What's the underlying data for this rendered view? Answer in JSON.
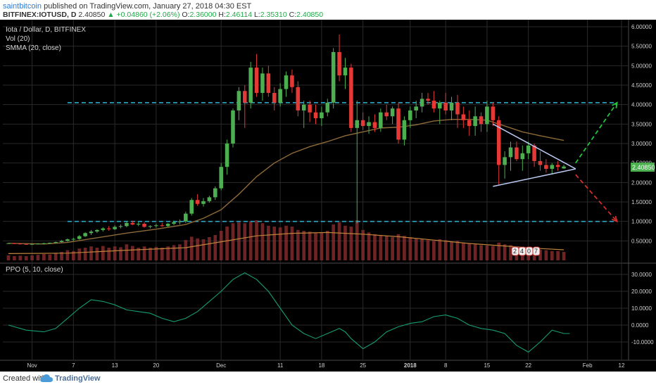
{
  "header": {
    "author": "saintbitcoin",
    "published_text": "published on TradingView.com, January 27, 2018 04:30 EST",
    "symbol": "BITFINEX:IOTUSD, D",
    "last": "2.40850",
    "change": "▲ +0.04860 (+2.06%)",
    "open_label": "O:",
    "open": "2.36000",
    "high_label": "H:",
    "high": "2.46114",
    "low_label": "L:",
    "low": "2.35310",
    "close_label": "C:",
    "close": "2.40850"
  },
  "legend": {
    "title": "Iota / Dollar, D, BITFINEX",
    "volume": "Vol (20)",
    "smma": "SMMA (20, close)",
    "ppo": "PPO (5, 10, close)"
  },
  "price_badge": "2.40850",
  "vol_badge": [
    "2",
    "4",
    "0",
    "7"
  ],
  "footer": {
    "created": "Created with",
    "brand": "TradingView"
  },
  "colors": {
    "up": "#4caf50",
    "down": "#e53935",
    "smma": "#8d6a3a",
    "vol": "#8a2d2d",
    "level": "#2fa7c7",
    "wedge": "#b8c8f0",
    "ppo": "#169c74",
    "proj_up": "#22c440",
    "proj_down": "#d0302a",
    "grid": "#2a2a2a",
    "axis_text": "#cfcfcf"
  },
  "chart_data": [
    {
      "type": "candlestick",
      "title": "Iota / Dollar, D, BITFINEX",
      "ylim": [
        0,
        6.0
      ],
      "y_ticks": [
        "6.00000",
        "5.50000",
        "5.00000",
        "4.50000",
        "4.00000",
        "3.50000",
        "3.00000",
        "2.50000",
        "2.00000",
        "1.50000",
        "1.00000",
        "0.50000"
      ],
      "x_tick_labels": [
        "Nov",
        "7",
        "13",
        "20",
        "Dec",
        "11",
        "18",
        "25",
        "2018",
        "8",
        "15",
        "22",
        "Feb",
        "12"
      ],
      "day_range": [
        0,
        104
      ],
      "candles": [
        [
          0,
          0.44,
          0.45,
          0.43,
          0.44
        ],
        [
          1,
          0.44,
          0.45,
          0.42,
          0.43
        ],
        [
          2,
          0.43,
          0.44,
          0.41,
          0.42
        ],
        [
          3,
          0.42,
          0.43,
          0.4,
          0.41
        ],
        [
          4,
          0.41,
          0.43,
          0.4,
          0.42
        ],
        [
          5,
          0.42,
          0.44,
          0.41,
          0.43
        ],
        [
          6,
          0.43,
          0.45,
          0.42,
          0.44
        ],
        [
          7,
          0.44,
          0.46,
          0.43,
          0.45
        ],
        [
          8,
          0.45,
          0.48,
          0.44,
          0.47
        ],
        [
          9,
          0.47,
          0.52,
          0.46,
          0.5
        ],
        [
          10,
          0.5,
          0.56,
          0.48,
          0.54
        ],
        [
          11,
          0.54,
          0.58,
          0.5,
          0.55
        ],
        [
          12,
          0.55,
          0.65,
          0.53,
          0.62
        ],
        [
          13,
          0.62,
          0.72,
          0.6,
          0.7
        ],
        [
          14,
          0.7,
          0.78,
          0.65,
          0.74
        ],
        [
          15,
          0.74,
          0.8,
          0.7,
          0.78
        ],
        [
          16,
          0.78,
          0.85,
          0.74,
          0.82
        ],
        [
          17,
          0.82,
          0.88,
          0.76,
          0.8
        ],
        [
          18,
          0.8,
          0.9,
          0.78,
          0.86
        ],
        [
          19,
          0.86,
          0.92,
          0.82,
          0.88
        ],
        [
          20,
          0.88,
          1.0,
          0.85,
          0.96
        ],
        [
          21,
          0.96,
          1.02,
          0.9,
          0.92
        ],
        [
          22,
          0.92,
          0.98,
          0.88,
          0.94
        ],
        [
          23,
          0.94,
          0.98,
          0.84,
          0.86
        ],
        [
          24,
          0.86,
          0.9,
          0.82,
          0.88
        ],
        [
          25,
          0.88,
          0.94,
          0.84,
          0.9
        ],
        [
          26,
          0.9,
          0.96,
          0.86,
          0.88
        ],
        [
          27,
          0.88,
          0.96,
          0.86,
          0.94
        ],
        [
          28,
          0.94,
          1.02,
          0.9,
          0.98
        ],
        [
          29,
          0.98,
          1.05,
          0.92,
          1.0
        ],
        [
          30,
          1.0,
          1.25,
          0.96,
          1.2
        ],
        [
          31,
          1.2,
          1.6,
          1.15,
          1.55
        ],
        [
          32,
          1.55,
          1.7,
          1.4,
          1.45
        ],
        [
          33,
          1.45,
          1.6,
          1.38,
          1.52
        ],
        [
          34,
          1.52,
          1.66,
          1.48,
          1.62
        ],
        [
          35,
          1.62,
          1.9,
          1.55,
          1.85
        ],
        [
          36,
          1.85,
          2.5,
          1.8,
          2.4
        ],
        [
          37,
          2.4,
          3.1,
          2.2,
          3.0
        ],
        [
          38,
          3.0,
          3.9,
          2.9,
          3.85
        ],
        [
          39,
          3.85,
          4.45,
          3.6,
          4.35
        ],
        [
          40,
          4.35,
          4.5,
          3.4,
          4.05
        ],
        [
          41,
          4.05,
          5.1,
          3.9,
          4.95
        ],
        [
          42,
          4.95,
          5.3,
          4.2,
          4.3
        ],
        [
          43,
          4.3,
          4.95,
          4.1,
          4.8
        ],
        [
          44,
          4.8,
          5.0,
          4.2,
          4.3
        ],
        [
          45,
          4.3,
          4.45,
          3.85,
          4.05
        ],
        [
          46,
          4.05,
          4.55,
          3.95,
          4.4
        ],
        [
          47,
          4.4,
          4.85,
          4.2,
          4.75
        ],
        [
          48,
          4.75,
          4.9,
          4.3,
          4.45
        ],
        [
          49,
          4.45,
          4.6,
          3.7,
          3.85
        ],
        [
          50,
          3.85,
          4.1,
          3.4,
          4.0
        ],
        [
          51,
          4.0,
          4.1,
          3.55,
          3.8
        ],
        [
          52,
          3.8,
          4.0,
          3.5,
          3.65
        ],
        [
          53,
          3.65,
          3.95,
          3.45,
          3.8
        ],
        [
          54,
          3.8,
          4.15,
          3.7,
          4.05
        ],
        [
          55,
          4.05,
          5.45,
          3.9,
          5.35
        ],
        [
          56,
          5.35,
          5.8,
          4.6,
          4.75
        ],
        [
          57,
          4.75,
          5.2,
          4.4,
          4.95
        ],
        [
          58,
          4.95,
          5.05,
          3.3,
          3.4
        ],
        [
          59,
          3.4,
          4.1,
          0.95,
          3.6
        ],
        [
          60,
          3.6,
          3.8,
          3.35,
          3.45
        ],
        [
          61,
          3.45,
          3.7,
          3.25,
          3.55
        ],
        [
          62,
          3.55,
          3.75,
          3.3,
          3.4
        ],
        [
          63,
          3.4,
          3.9,
          3.3,
          3.8
        ],
        [
          64,
          3.8,
          4.0,
          3.6,
          3.7
        ],
        [
          65,
          3.7,
          3.95,
          3.5,
          3.9
        ],
        [
          66,
          3.9,
          4.05,
          3.0,
          3.1
        ],
        [
          67,
          3.1,
          3.7,
          2.95,
          3.6
        ],
        [
          68,
          3.6,
          3.95,
          3.4,
          3.85
        ],
        [
          69,
          3.85,
          4.1,
          3.65,
          3.95
        ],
        [
          70,
          3.95,
          4.3,
          3.8,
          4.15
        ],
        [
          71,
          4.15,
          4.3,
          4.0,
          4.1
        ],
        [
          72,
          4.1,
          4.35,
          3.8,
          3.9
        ],
        [
          73,
          3.9,
          4.1,
          3.5,
          4.05
        ],
        [
          74,
          4.05,
          4.3,
          3.75,
          3.85
        ],
        [
          75,
          3.85,
          4.2,
          3.6,
          4.05
        ],
        [
          76,
          4.05,
          4.25,
          3.4,
          3.75
        ],
        [
          77,
          3.75,
          3.95,
          3.4,
          3.6
        ],
        [
          78,
          3.6,
          3.85,
          3.2,
          3.45
        ],
        [
          79,
          3.45,
          3.95,
          3.2,
          3.7
        ],
        [
          80,
          3.7,
          3.8,
          3.3,
          3.5
        ],
        [
          81,
          3.5,
          4.1,
          3.3,
          3.95
        ],
        [
          82,
          3.95,
          4.05,
          3.45,
          3.6
        ],
        [
          83,
          3.6,
          3.7,
          1.95,
          2.45
        ],
        [
          84,
          2.45,
          2.8,
          2.1,
          2.65
        ],
        [
          85,
          2.65,
          3.05,
          2.3,
          2.9
        ],
        [
          86,
          2.9,
          3.05,
          2.55,
          2.6
        ],
        [
          87,
          2.6,
          2.95,
          2.3,
          2.75
        ],
        [
          88,
          2.75,
          3.05,
          2.6,
          2.95
        ],
        [
          89,
          2.95,
          3.0,
          2.4,
          2.55
        ],
        [
          90,
          2.55,
          2.8,
          2.3,
          2.45
        ],
        [
          91,
          2.45,
          2.6,
          2.25,
          2.35
        ],
        [
          92,
          2.35,
          2.5,
          2.2,
          2.45
        ],
        [
          93,
          2.45,
          2.55,
          2.3,
          2.4
        ],
        [
          94,
          2.36,
          2.46,
          2.35,
          2.41
        ]
      ],
      "smma": [
        [
          0,
          0.44
        ],
        [
          6,
          0.42
        ],
        [
          10,
          0.46
        ],
        [
          15,
          0.58
        ],
        [
          20,
          0.7
        ],
        [
          25,
          0.8
        ],
        [
          30,
          0.92
        ],
        [
          33,
          1.08
        ],
        [
          36,
          1.3
        ],
        [
          39,
          1.7
        ],
        [
          42,
          2.15
        ],
        [
          45,
          2.5
        ],
        [
          48,
          2.75
        ],
        [
          51,
          2.92
        ],
        [
          54,
          3.05
        ],
        [
          57,
          3.2
        ],
        [
          60,
          3.3
        ],
        [
          63,
          3.4
        ],
        [
          66,
          3.42
        ],
        [
          69,
          3.48
        ],
        [
          72,
          3.58
        ],
        [
          75,
          3.62
        ],
        [
          78,
          3.62
        ],
        [
          81,
          3.6
        ],
        [
          84,
          3.45
        ],
        [
          87,
          3.3
        ],
        [
          90,
          3.2
        ],
        [
          94,
          3.08
        ]
      ],
      "levels": [
        4.05,
        1.0
      ],
      "wedge": {
        "apex": [
          96,
          2.35
        ],
        "upper_start": [
          82,
          3.5
        ],
        "lower_start": [
          82,
          1.9
        ]
      },
      "projections": {
        "up": [
          [
            96,
            2.5
          ],
          [
            103,
            4.05
          ]
        ],
        "down": [
          [
            96,
            2.2
          ],
          [
            103,
            1.0
          ]
        ]
      },
      "volume": [
        0.12,
        0.1,
        0.11,
        0.1,
        0.12,
        0.13,
        0.15,
        0.14,
        0.18,
        0.2,
        0.24,
        0.22,
        0.28,
        0.3,
        0.33,
        0.3,
        0.34,
        0.3,
        0.33,
        0.31,
        0.38,
        0.34,
        0.3,
        0.33,
        0.3,
        0.32,
        0.3,
        0.33,
        0.36,
        0.38,
        0.48,
        0.56,
        0.52,
        0.5,
        0.55,
        0.6,
        0.7,
        0.8,
        0.88,
        0.9,
        0.88,
        0.92,
        0.95,
        0.88,
        0.82,
        0.8,
        0.78,
        0.82,
        0.8,
        0.72,
        0.7,
        0.68,
        0.65,
        0.66,
        0.7,
        0.85,
        0.9,
        0.82,
        0.8,
        0.95,
        0.72,
        0.66,
        0.62,
        0.6,
        0.58,
        0.55,
        0.62,
        0.58,
        0.55,
        0.52,
        0.5,
        0.48,
        0.46,
        0.5,
        0.48,
        0.44,
        0.46,
        0.42,
        0.4,
        0.38,
        0.36,
        0.35,
        0.34,
        0.42,
        0.38,
        0.36,
        0.32,
        0.3,
        0.28,
        0.27,
        0.25,
        0.24,
        0.22,
        0.22,
        0.2
      ],
      "volume_ma": [
        [
          0,
          0.16
        ],
        [
          10,
          0.17
        ],
        [
          20,
          0.24
        ],
        [
          30,
          0.3
        ],
        [
          36,
          0.44
        ],
        [
          42,
          0.58
        ],
        [
          48,
          0.64
        ],
        [
          54,
          0.66
        ],
        [
          60,
          0.62
        ],
        [
          66,
          0.56
        ],
        [
          72,
          0.48
        ],
        [
          78,
          0.4
        ],
        [
          84,
          0.34
        ],
        [
          90,
          0.28
        ],
        [
          94,
          0.25
        ]
      ]
    },
    {
      "type": "line",
      "title": "PPO (5, 10, close)",
      "ylim": [
        -20,
        35
      ],
      "y_ticks": [
        "30.0000",
        "20.0000",
        "10.0000",
        "0.0000",
        "-10.0000"
      ],
      "series": [
        {
          "values": [
            [
              0,
              0
            ],
            [
              3,
              -3
            ],
            [
              6,
              -4
            ],
            [
              8,
              -2
            ],
            [
              10,
              4
            ],
            [
              12,
              10
            ],
            [
              14,
              15
            ],
            [
              16,
              14
            ],
            [
              18,
              12
            ],
            [
              20,
              9
            ],
            [
              22,
              8
            ],
            [
              24,
              7
            ],
            [
              26,
              4
            ],
            [
              28,
              2
            ],
            [
              30,
              4
            ],
            [
              32,
              8
            ],
            [
              34,
              14
            ],
            [
              36,
              20
            ],
            [
              38,
              27
            ],
            [
              40,
              31
            ],
            [
              42,
              27
            ],
            [
              44,
              20
            ],
            [
              46,
              10
            ],
            [
              48,
              0
            ],
            [
              50,
              -5
            ],
            [
              52,
              -8
            ],
            [
              54,
              -5
            ],
            [
              56,
              -2
            ],
            [
              57,
              -4
            ],
            [
              58,
              -8
            ],
            [
              60,
              -14
            ],
            [
              62,
              -10
            ],
            [
              64,
              -4
            ],
            [
              66,
              -1
            ],
            [
              68,
              1
            ],
            [
              70,
              2
            ],
            [
              72,
              5
            ],
            [
              74,
              6
            ],
            [
              76,
              4
            ],
            [
              78,
              0
            ],
            [
              80,
              -2
            ],
            [
              82,
              -3
            ],
            [
              84,
              -5
            ],
            [
              86,
              -12
            ],
            [
              88,
              -16
            ],
            [
              90,
              -10
            ],
            [
              92,
              -3
            ],
            [
              94,
              -5
            ],
            [
              95,
              -5
            ]
          ]
        }
      ]
    }
  ]
}
